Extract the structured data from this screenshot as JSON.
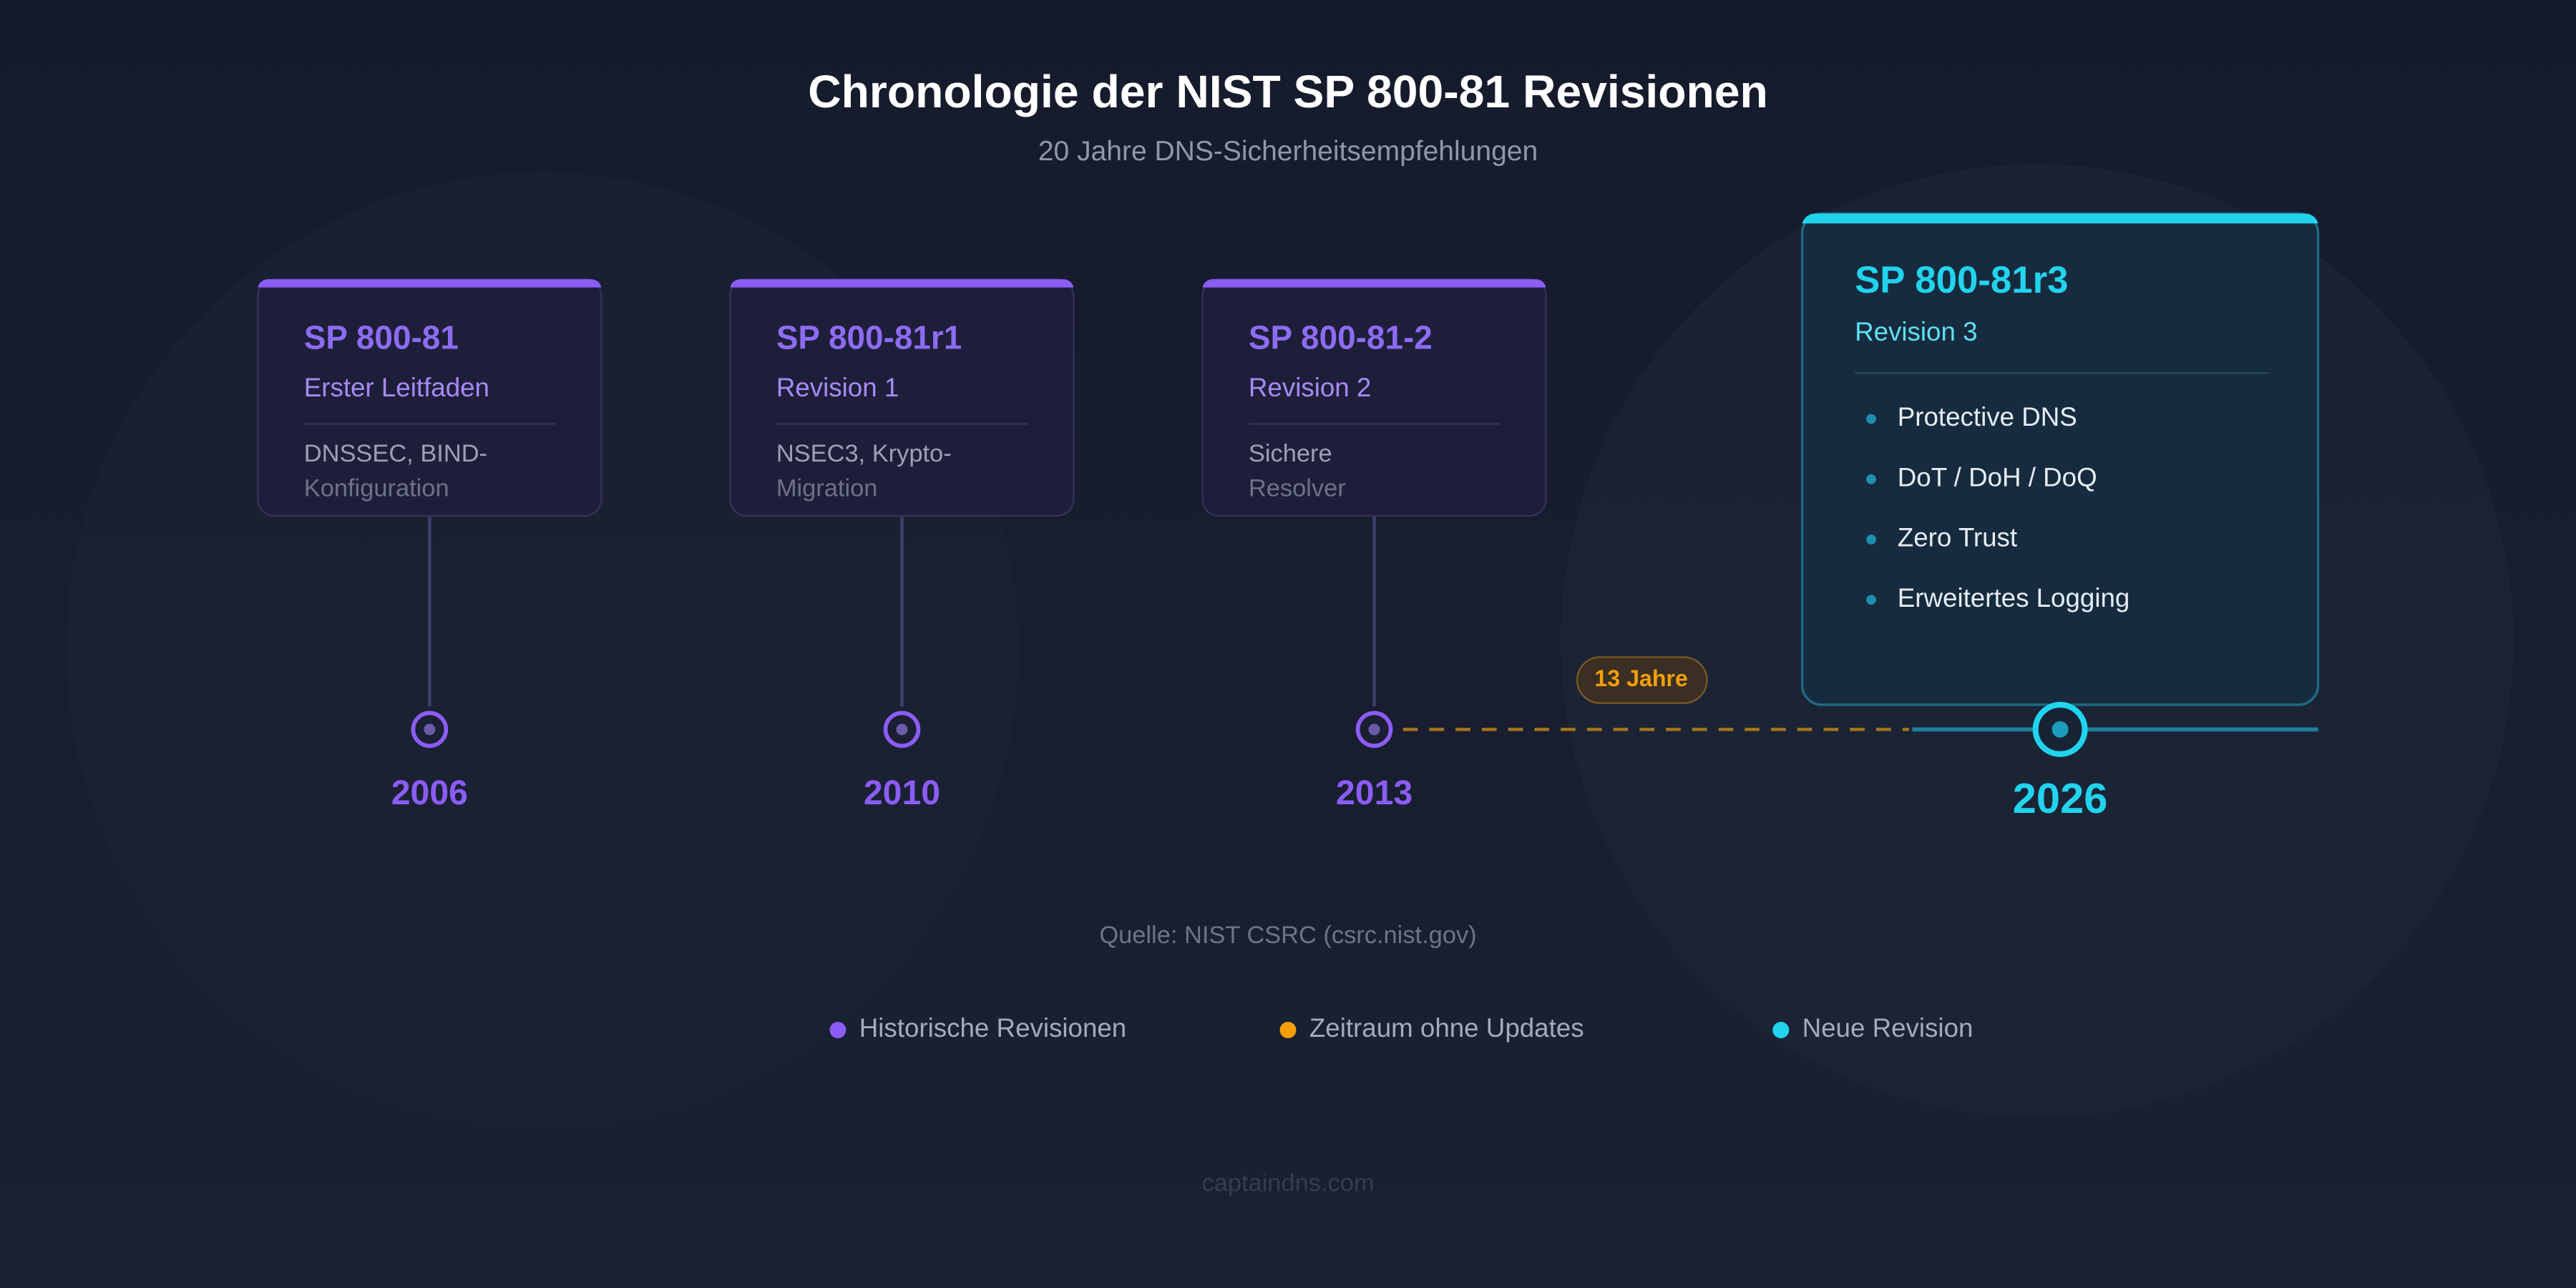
{
  "header": {
    "title": "Chronologie der NIST SP 800-81 Revisionen",
    "subtitle": "20 Jahre DNS-Sicherheitsempfehlungen"
  },
  "revisions": [
    {
      "name": "SP 800-81",
      "subtitle": "Erster Leitfaden",
      "details": [
        "DNSSEC, BIND-",
        "Konfiguration"
      ],
      "year": "2006"
    },
    {
      "name": "SP 800-81r1",
      "subtitle": "Revision 1",
      "details": [
        "NSEC3, Krypto-",
        "Migration"
      ],
      "year": "2010"
    },
    {
      "name": "SP 800-81-2",
      "subtitle": "Revision 2",
      "details": [
        "Sichere",
        "Resolver"
      ],
      "year": "2013"
    }
  ],
  "new_revision": {
    "name": "SP 800-81r3",
    "subtitle": "Revision 3",
    "items": [
      "Protective DNS",
      "DoT / DoH / DoQ",
      "Zero Trust",
      "Erweitertes Logging"
    ],
    "year": "2026"
  },
  "gap_label": "13 Jahre",
  "source": "Quelle: NIST CSRC (csrc.nist.gov)",
  "legend": [
    "Historische Revisionen",
    "Zeitraum ohne Updates",
    "Neue Revision"
  ],
  "footer": "captaindns.com"
}
